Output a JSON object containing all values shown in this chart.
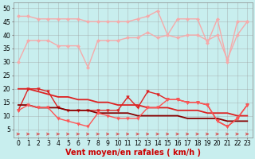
{
  "x": [
    0,
    1,
    2,
    3,
    4,
    5,
    6,
    7,
    8,
    9,
    10,
    11,
    12,
    13,
    14,
    15,
    16,
    17,
    18,
    19,
    20,
    21,
    22,
    23
  ],
  "series": [
    {
      "name": "rafales_max",
      "y": [
        47,
        47,
        46,
        46,
        46,
        46,
        46,
        45,
        45,
        45,
        45,
        45,
        46,
        47,
        49,
        40,
        46,
        46,
        46,
        37,
        46,
        30,
        45,
        45
      ],
      "color": "#f5aaaa",
      "lw": 1.0,
      "marker": "D",
      "ms": 2.0
    },
    {
      "name": "rafales_mean",
      "y": [
        30,
        38,
        38,
        38,
        36,
        36,
        36,
        28,
        38,
        38,
        38,
        39,
        39,
        41,
        39,
        40,
        39,
        40,
        40,
        38,
        40,
        31,
        40,
        45
      ],
      "color": "#f5aaaa",
      "lw": 1.0,
      "marker": "D",
      "ms": 2.0
    },
    {
      "name": "vent_max",
      "y": [
        12,
        20,
        20,
        19,
        13,
        12,
        12,
        12,
        12,
        12,
        12,
        17,
        13,
        19,
        18,
        16,
        16,
        15,
        15,
        14,
        8,
        6,
        9,
        14
      ],
      "color": "#dd2222",
      "lw": 1.0,
      "marker": "v",
      "ms": 2.5
    },
    {
      "name": "vent_trend1",
      "y": [
        20,
        20,
        19,
        18,
        17,
        17,
        16,
        16,
        15,
        15,
        14,
        14,
        14,
        13,
        13,
        13,
        12,
        12,
        12,
        11,
        11,
        11,
        10,
        10
      ],
      "color": "#dd2222",
      "lw": 1.3,
      "marker": null,
      "ms": 0
    },
    {
      "name": "vent_trend2",
      "y": [
        14,
        14,
        13,
        13,
        13,
        12,
        12,
        12,
        11,
        11,
        11,
        11,
        10,
        10,
        10,
        10,
        10,
        9,
        9,
        9,
        9,
        8,
        8,
        8
      ],
      "color": "#880000",
      "lw": 1.3,
      "marker": null,
      "ms": 0
    },
    {
      "name": "vent_moyen",
      "y": [
        12,
        14,
        13,
        13,
        9,
        8,
        7,
        6,
        11,
        10,
        9,
        9,
        9,
        13,
        13,
        16,
        16,
        15,
        15,
        14,
        8,
        6,
        9,
        14
      ],
      "color": "#ff5555",
      "lw": 1.0,
      "marker": "v",
      "ms": 2.5
    }
  ],
  "arrows": {
    "y": 3.2,
    "color": "#dd3333",
    "directions": [
      2,
      0,
      0,
      2,
      0,
      0,
      2,
      0,
      0,
      0,
      0,
      2,
      0,
      0,
      2,
      0,
      0,
      0,
      0,
      2,
      0,
      2,
      0,
      2
    ]
  },
  "xlabel": "Vent moyen/en rafales ( km/h )",
  "ylim": [
    2,
    52
  ],
  "yticks": [
    5,
    10,
    15,
    20,
    25,
    30,
    35,
    40,
    45,
    50
  ],
  "xticks": [
    0,
    1,
    2,
    3,
    4,
    5,
    6,
    7,
    8,
    9,
    10,
    11,
    12,
    13,
    14,
    15,
    16,
    17,
    18,
    19,
    20,
    21,
    22,
    23
  ],
  "bg_color": "#c8eeee",
  "grid_color": "#999999",
  "tick_fontsize": 5.5,
  "xlabel_fontsize": 7
}
